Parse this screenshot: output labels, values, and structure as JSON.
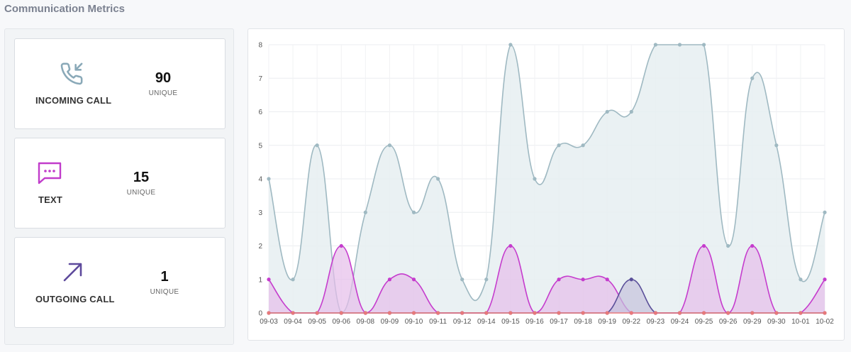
{
  "page": {
    "title": "Communication Metrics"
  },
  "metrics": [
    {
      "label": "INCOMING CALL",
      "count": "90",
      "sub": "UNIQUE",
      "icon": "incoming-call-icon",
      "color": "#8aa9b8"
    },
    {
      "label": "TEXT",
      "count": "15",
      "sub": "UNIQUE",
      "icon": "message-bubble-icon",
      "color": "#c13ccb"
    },
    {
      "label": "OUTGOING CALL",
      "count": "1",
      "sub": "UNIQUE",
      "icon": "outgoing-arrow-icon",
      "color": "#5e4a9c"
    }
  ],
  "chart_data": {
    "type": "area",
    "title": "",
    "xlabel": "",
    "ylabel": "",
    "ylim": [
      0,
      8
    ],
    "yticks": [
      "0",
      "1",
      "2",
      "3",
      "4",
      "5",
      "6",
      "7",
      "8"
    ],
    "grid": true,
    "legend": "none",
    "categories": [
      "09-03",
      "09-04",
      "09-05",
      "09-06",
      "09-08",
      "09-09",
      "09-10",
      "09-11",
      "09-12",
      "09-14",
      "09-15",
      "09-16",
      "09-17",
      "09-18",
      "09-19",
      "09-22",
      "09-23",
      "09-24",
      "09-25",
      "09-26",
      "09-29",
      "09-30",
      "10-01",
      "10-02"
    ],
    "series": [
      {
        "values": [
          4,
          1,
          5,
          0,
          3,
          5,
          3,
          4,
          1,
          1,
          8,
          4,
          5,
          5,
          6,
          6,
          8,
          8,
          8,
          2,
          7,
          5,
          1,
          3
        ],
        "color": "#9fb9c2",
        "fill": "#e6eef1"
      },
      {
        "values": [
          1,
          0,
          0,
          2,
          0,
          1,
          1,
          0,
          0,
          0,
          2,
          0,
          1,
          1,
          1,
          0,
          0,
          0,
          2,
          0,
          2,
          0,
          0,
          1
        ],
        "color": "#c53ccd",
        "fill": "#e6bde9"
      },
      {
        "values": [
          0,
          0,
          0,
          0,
          0,
          0,
          0,
          0,
          0,
          0,
          0,
          0,
          0,
          0,
          0,
          1,
          0,
          0,
          0,
          0,
          0,
          0,
          0,
          0
        ],
        "color": "#5a4f99",
        "fill": "#c5c2dc"
      },
      {
        "values": [
          0,
          0,
          0,
          0,
          0,
          0,
          0,
          0,
          0,
          0,
          0,
          0,
          0,
          0,
          0,
          0,
          0,
          0,
          0,
          0,
          0,
          0,
          0,
          0
        ],
        "color": "#e8797a",
        "fill": "#f3c7c7"
      }
    ]
  }
}
